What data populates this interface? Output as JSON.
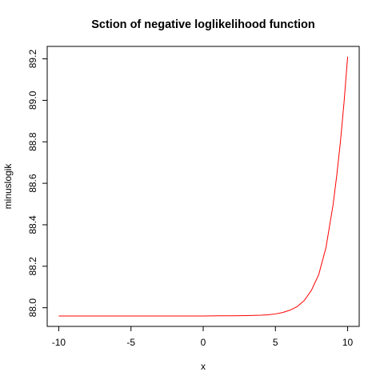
{
  "chart_data": {
    "type": "line",
    "title": "Sction of negative loglikelihood function",
    "xlabel": "x",
    "ylabel": "minuslogik",
    "xlim": [
      -10.8,
      10.8
    ],
    "ylim": [
      87.91,
      89.26
    ],
    "x_ticks": [
      -10,
      -5,
      0,
      5,
      10
    ],
    "x_tick_labels": [
      "-10",
      "-5",
      "0",
      "5",
      "10"
    ],
    "y_ticks": [
      88.0,
      88.2,
      88.4,
      88.6,
      88.8,
      89.0,
      89.2
    ],
    "y_tick_labels": [
      "88.0",
      "88.2",
      "88.4",
      "88.6",
      "88.8",
      "89.0",
      "89.2"
    ],
    "grid": false,
    "legend": "none",
    "series": [
      {
        "color": "#ff0000",
        "x": [
          -10,
          -8,
          -6,
          -4,
          -2,
          0,
          1,
          2,
          3,
          4,
          4.5,
          5,
          5.5,
          6,
          6.5,
          7,
          7.5,
          8,
          8.5,
          9,
          9.25,
          9.5,
          9.75,
          10
        ],
        "y": [
          87.96,
          87.96,
          87.96,
          87.96,
          87.96,
          87.96,
          87.961,
          87.961,
          87.962,
          87.964,
          87.966,
          87.97,
          87.977,
          87.988,
          88.005,
          88.035,
          88.085,
          88.16,
          88.29,
          88.5,
          88.64,
          88.8,
          88.99,
          89.21
        ]
      }
    ]
  }
}
